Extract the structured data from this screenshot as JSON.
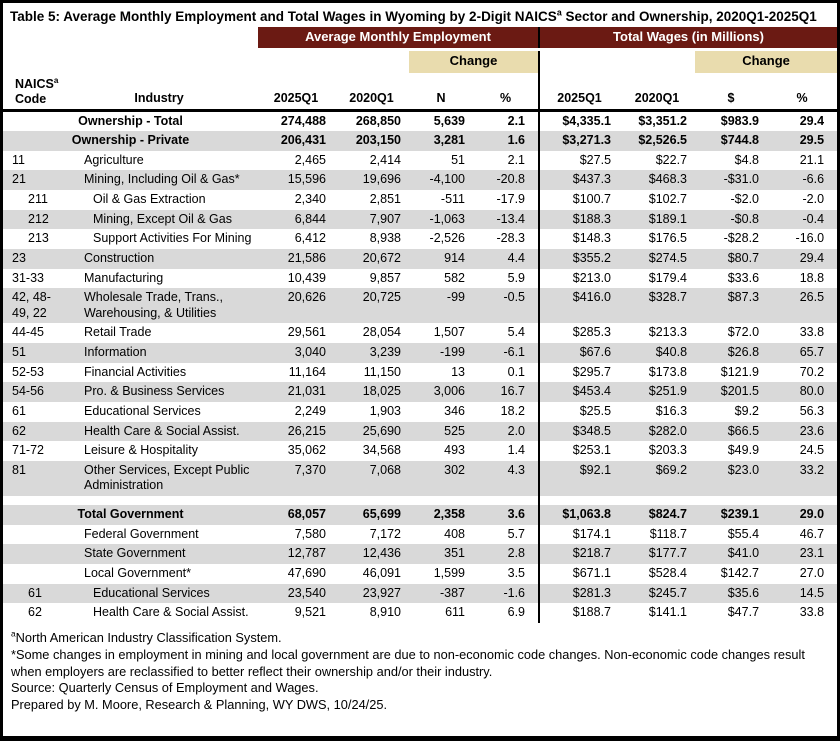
{
  "title": {
    "pre": "Table 5: Average Monthly Employment and Total Wages in Wyoming by 2-Digit NAICS",
    "sup": "a",
    "post": " Sector and Ownership, 2020Q1-2025Q1"
  },
  "colors": {
    "maroon": "#6b1a13",
    "tan": "#e9dcae",
    "shaded_row": "#d9d9d9"
  },
  "table": {
    "group_headers": {
      "employment": "Average Monthly Employment",
      "wages": "Total Wages (in Millions)"
    },
    "change_label": "Change",
    "columns": {
      "naics_line1": "NAICS",
      "naics_sup": "a",
      "naics_line2": "Code",
      "industry": "Industry",
      "emp_2025": "2025Q1",
      "emp_2020": "2020Q1",
      "emp_change_n": "N",
      "emp_change_pct": "%",
      "wage_2025": "2025Q1",
      "wage_2020": "2020Q1",
      "wage_change_dollar": "$",
      "wage_change_pct": "%"
    },
    "rows": [
      {
        "industry": "Ownership - Total",
        "center": true,
        "bold": true,
        "shaded": false,
        "values": [
          "274,488",
          "268,850",
          "5,639",
          "2.1",
          "$4,335.1",
          "$3,351.2",
          "$983.9",
          "29.4"
        ]
      },
      {
        "industry": "Ownership - Private",
        "center": true,
        "bold": true,
        "shaded": true,
        "values": [
          "206,431",
          "203,150",
          "3,281",
          "1.6",
          "$3,271.3",
          "$2,526.5",
          "$744.8",
          "29.5"
        ]
      },
      {
        "code": "11",
        "industry": "Agriculture",
        "shaded": false,
        "values": [
          "2,465",
          "2,414",
          "51",
          "2.1",
          "$27.5",
          "$22.7",
          "$4.8",
          "21.1"
        ]
      },
      {
        "code": "21",
        "industry": "Mining, Including Oil & Gas*",
        "shaded": true,
        "values": [
          "15,596",
          "19,696",
          "-4,100",
          "-20.8",
          "$437.3",
          "$468.3",
          "-$31.0",
          "-6.6"
        ]
      },
      {
        "code": "211",
        "sub": true,
        "industry": "Oil & Gas Extraction",
        "shaded": false,
        "values": [
          "2,340",
          "2,851",
          "-511",
          "-17.9",
          "$100.7",
          "$102.7",
          "-$2.0",
          "-2.0"
        ]
      },
      {
        "code": "212",
        "sub": true,
        "industry": "Mining, Except Oil & Gas",
        "shaded": true,
        "values": [
          "6,844",
          "7,907",
          "-1,063",
          "-13.4",
          "$188.3",
          "$189.1",
          "-$0.8",
          "-0.4"
        ]
      },
      {
        "code": "213",
        "sub": true,
        "industry": "Support Activities For Mining",
        "shaded": false,
        "values": [
          "6,412",
          "8,938",
          "-2,526",
          "-28.3",
          "$148.3",
          "$176.5",
          "-$28.2",
          "-16.0"
        ]
      },
      {
        "code": "23",
        "industry": "Construction",
        "shaded": true,
        "values": [
          "21,586",
          "20,672",
          "914",
          "4.4",
          "$355.2",
          "$274.5",
          "$80.7",
          "29.4"
        ]
      },
      {
        "code": "31-33",
        "industry": "Manufacturing",
        "shaded": false,
        "values": [
          "10,439",
          "9,857",
          "582",
          "5.9",
          "$213.0",
          "$179.4",
          "$33.6",
          "18.8"
        ]
      },
      {
        "code": "42, 48-49, 22",
        "industry": "Wholesale Trade, Trans., Warehousing, & Utilities",
        "shaded": true,
        "values": [
          "20,626",
          "20,725",
          "-99",
          "-0.5",
          "$416.0",
          "$328.7",
          "$87.3",
          "26.5"
        ]
      },
      {
        "code": "44-45",
        "industry": "Retail Trade",
        "shaded": false,
        "values": [
          "29,561",
          "28,054",
          "1,507",
          "5.4",
          "$285.3",
          "$213.3",
          "$72.0",
          "33.8"
        ]
      },
      {
        "code": "51",
        "industry": "Information",
        "shaded": true,
        "values": [
          "3,040",
          "3,239",
          "-199",
          "-6.1",
          "$67.6",
          "$40.8",
          "$26.8",
          "65.7"
        ]
      },
      {
        "code": "52-53",
        "industry": "Financial Activities",
        "shaded": false,
        "values": [
          "11,164",
          "11,150",
          "13",
          "0.1",
          "$295.7",
          "$173.8",
          "$121.9",
          "70.2"
        ]
      },
      {
        "code": "54-56",
        "industry": "Pro. & Business Services",
        "shaded": true,
        "values": [
          "21,031",
          "18,025",
          "3,006",
          "16.7",
          "$453.4",
          "$251.9",
          "$201.5",
          "80.0"
        ]
      },
      {
        "code": "61",
        "industry": "Educational Services",
        "shaded": false,
        "values": [
          "2,249",
          "1,903",
          "346",
          "18.2",
          "$25.5",
          "$16.3",
          "$9.2",
          "56.3"
        ]
      },
      {
        "code": "62",
        "industry": "Health Care & Social Assist.",
        "shaded": true,
        "values": [
          "26,215",
          "25,690",
          "525",
          "2.0",
          "$348.5",
          "$282.0",
          "$66.5",
          "23.6"
        ]
      },
      {
        "code": "71-72",
        "industry": "Leisure & Hospitality",
        "shaded": false,
        "values": [
          "35,062",
          "34,568",
          "493",
          "1.4",
          "$253.1",
          "$203.3",
          "$49.9",
          "24.5"
        ]
      },
      {
        "code": "81",
        "industry": "Other Services, Except Public Administration",
        "shaded": true,
        "values": [
          "7,370",
          "7,068",
          "302",
          "4.3",
          "$92.1",
          "$69.2",
          "$23.0",
          "33.2"
        ]
      },
      {
        "spacer": true
      },
      {
        "industry": "Total Government",
        "center": true,
        "bold": true,
        "shaded": true,
        "values": [
          "68,057",
          "65,699",
          "2,358",
          "3.6",
          "$1,063.8",
          "$824.7",
          "$239.1",
          "29.0"
        ]
      },
      {
        "industry": "Federal Government",
        "shaded": false,
        "values": [
          "7,580",
          "7,172",
          "408",
          "5.7",
          "$174.1",
          "$118.7",
          "$55.4",
          "46.7"
        ]
      },
      {
        "industry": "State Government",
        "shaded": true,
        "values": [
          "12,787",
          "12,436",
          "351",
          "2.8",
          "$218.7",
          "$177.7",
          "$41.0",
          "23.1"
        ]
      },
      {
        "industry": "Local Government*",
        "shaded": false,
        "values": [
          "47,690",
          "46,091",
          "1,599",
          "3.5",
          "$671.1",
          "$528.4",
          "$142.7",
          "27.0"
        ]
      },
      {
        "code": "61",
        "sub": true,
        "industry": "Educational Services",
        "shaded": true,
        "values": [
          "23,540",
          "23,927",
          "-387",
          "-1.6",
          "$281.3",
          "$245.7",
          "$35.6",
          "14.5"
        ]
      },
      {
        "code": "62",
        "sub": true,
        "industry": "Health Care & Social Assist.",
        "shaded": false,
        "values": [
          "9,521",
          "8,910",
          "611",
          "6.9",
          "$188.7",
          "$141.1",
          "$47.7",
          "33.8"
        ]
      }
    ]
  },
  "footnotes": {
    "naics_sup": "a",
    "naics": "North American Industry Classification System.",
    "code_changes": "*Some changes in employment in mining and local government are due to non-economic code changes. Non-economic code changes result when employers are reclassified to better reflect their ownership and/or their industry.",
    "source": "Source: Quarterly Census of Employment and Wages.",
    "prepared": "Prepared by M. Moore, Research & Planning, WY DWS, 10/24/25."
  }
}
